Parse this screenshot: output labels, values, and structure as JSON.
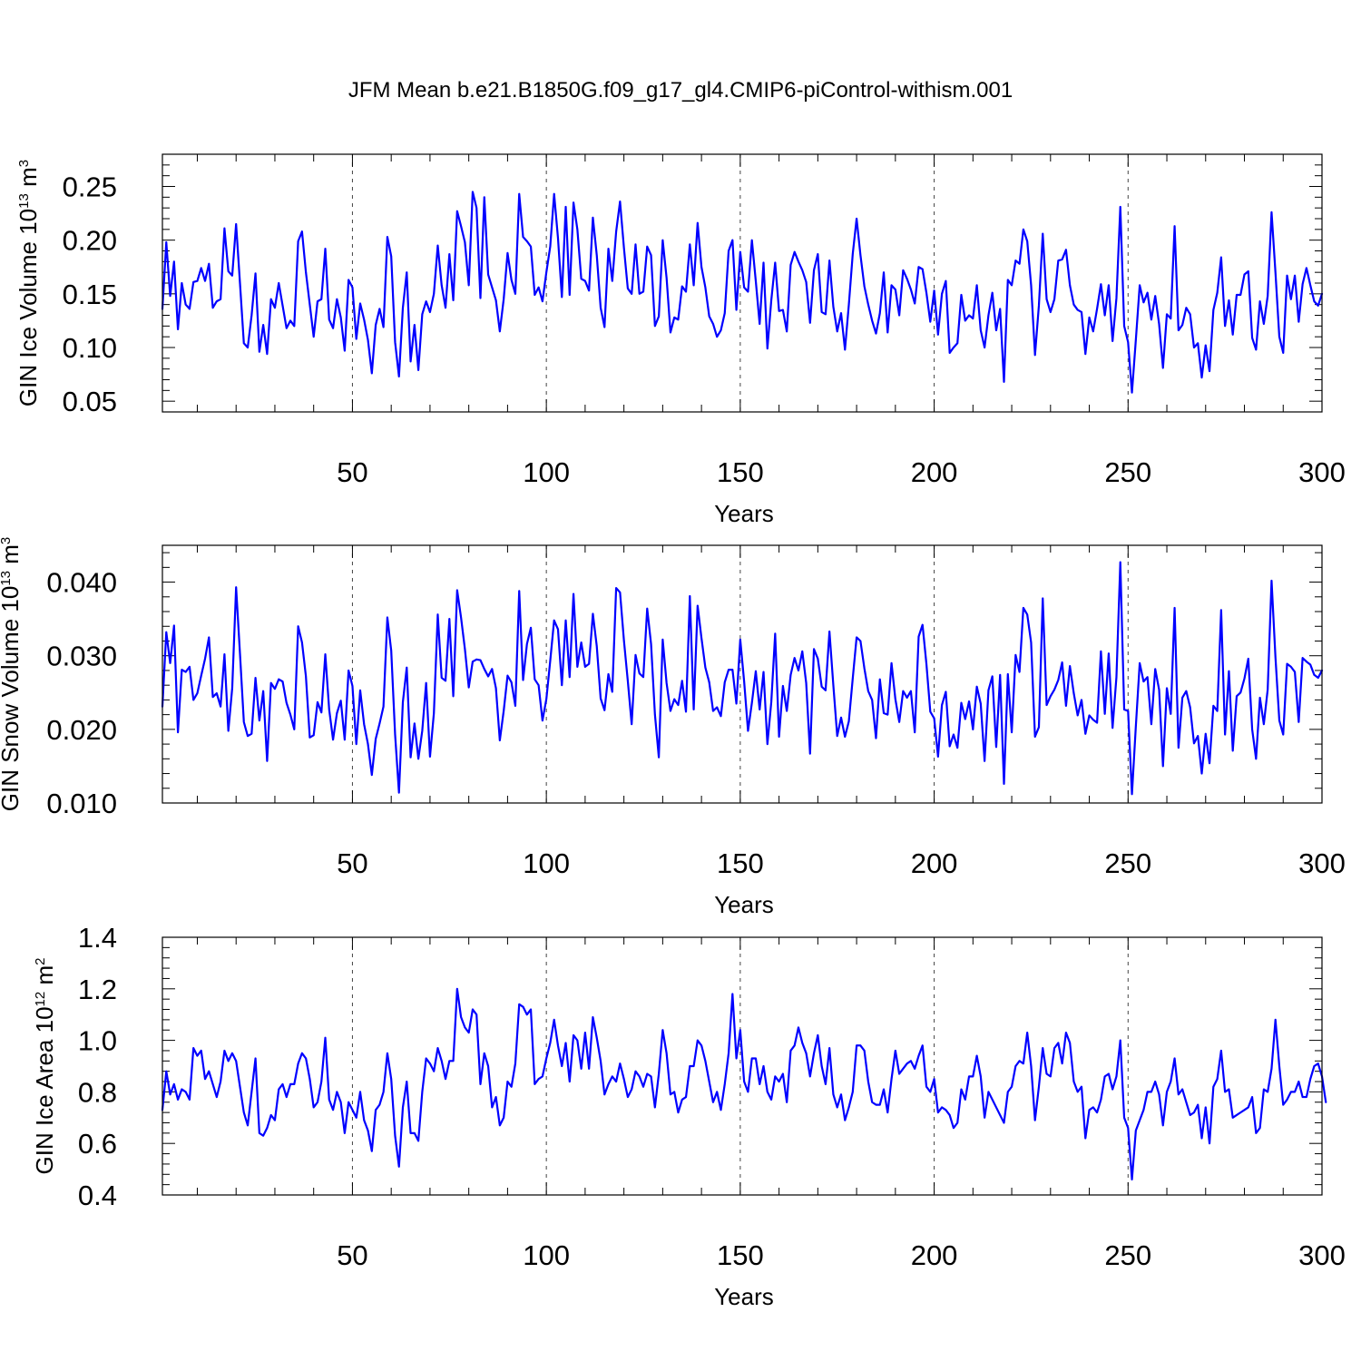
{
  "figure": {
    "title": "JFM Mean b.e21.B1850G.f09_g17_gl4.CMIP6-piControl-withism.001",
    "line_color": "#0000ff",
    "guide_color": "#444444"
  },
  "chart_data": [
    {
      "type": "line",
      "xlabel": "Years",
      "ylabel_main": "GIN Ice Volume 10",
      "ylabel_exp": "13",
      "ylabel_unit": " m",
      "ylabel_unit_exp": "3",
      "xlim": [
        1,
        300
      ],
      "ylim": [
        0.04,
        0.28
      ],
      "yticks": [
        0.05,
        0.1,
        0.15,
        0.2,
        0.25
      ],
      "ytick_labels": [
        "0.05",
        "0.10",
        "0.15",
        "0.20",
        "0.25"
      ],
      "xticks": [
        50,
        100,
        150,
        200,
        250,
        300
      ],
      "xtick_labels": [
        "50",
        "100",
        "150",
        "200",
        "250",
        "300"
      ],
      "guides_x": [
        50,
        100,
        150,
        200,
        250
      ],
      "grid": false,
      "x_start": 1,
      "x_step": 1,
      "values": [
        0.136,
        0.198,
        0.148,
        0.18,
        0.117,
        0.16,
        0.14,
        0.136,
        0.161,
        0.162,
        0.174,
        0.162,
        0.178,
        0.137,
        0.143,
        0.145,
        0.211,
        0.171,
        0.167,
        0.215,
        0.16,
        0.104,
        0.1,
        0.13,
        0.169,
        0.096,
        0.121,
        0.094,
        0.145,
        0.137,
        0.16,
        0.139,
        0.118,
        0.125,
        0.12,
        0.199,
        0.208,
        0.17,
        0.14,
        0.11,
        0.143,
        0.145,
        0.192,
        0.126,
        0.118,
        0.145,
        0.128,
        0.097,
        0.163,
        0.156,
        0.108,
        0.141,
        0.126,
        0.107,
        0.076,
        0.121,
        0.136,
        0.119,
        0.203,
        0.185,
        0.105,
        0.073,
        0.137,
        0.17,
        0.087,
        0.121,
        0.079,
        0.131,
        0.143,
        0.133,
        0.15,
        0.195,
        0.158,
        0.137,
        0.187,
        0.144,
        0.227,
        0.213,
        0.198,
        0.158,
        0.245,
        0.23,
        0.146,
        0.24,
        0.168,
        0.156,
        0.144,
        0.115,
        0.145,
        0.188,
        0.163,
        0.15,
        0.243,
        0.203,
        0.199,
        0.194,
        0.149,
        0.156,
        0.143,
        0.17,
        0.194,
        0.243,
        0.202,
        0.147,
        0.231,
        0.149,
        0.235,
        0.21,
        0.164,
        0.162,
        0.153,
        0.221,
        0.186,
        0.137,
        0.119,
        0.192,
        0.162,
        0.208,
        0.236,
        0.193,
        0.155,
        0.15,
        0.196,
        0.15,
        0.152,
        0.194,
        0.186,
        0.12,
        0.129,
        0.2,
        0.165,
        0.114,
        0.128,
        0.126,
        0.157,
        0.152,
        0.196,
        0.158,
        0.216,
        0.175,
        0.156,
        0.129,
        0.122,
        0.11,
        0.116,
        0.132,
        0.19,
        0.2,
        0.135,
        0.189,
        0.156,
        0.152,
        0.2,
        0.162,
        0.122,
        0.179,
        0.099,
        0.144,
        0.179,
        0.134,
        0.135,
        0.115,
        0.177,
        0.189,
        0.18,
        0.172,
        0.161,
        0.123,
        0.172,
        0.187,
        0.133,
        0.131,
        0.181,
        0.138,
        0.115,
        0.132,
        0.098,
        0.14,
        0.187,
        0.22,
        0.186,
        0.157,
        0.14,
        0.125,
        0.113,
        0.132,
        0.17,
        0.114,
        0.158,
        0.154,
        0.13,
        0.172,
        0.164,
        0.154,
        0.141,
        0.175,
        0.173,
        0.151,
        0.124,
        0.153,
        0.112,
        0.15,
        0.162,
        0.095,
        0.1,
        0.104,
        0.149,
        0.125,
        0.13,
        0.127,
        0.158,
        0.116,
        0.1,
        0.13,
        0.151,
        0.116,
        0.136,
        0.068,
        0.163,
        0.158,
        0.181,
        0.178,
        0.21,
        0.199,
        0.158,
        0.093,
        0.139,
        0.206,
        0.145,
        0.133,
        0.145,
        0.181,
        0.182,
        0.191,
        0.158,
        0.14,
        0.135,
        0.133,
        0.094,
        0.128,
        0.115,
        0.136,
        0.159,
        0.13,
        0.158,
        0.106,
        0.146,
        0.231,
        0.12,
        0.105,
        0.058,
        0.107,
        0.158,
        0.142,
        0.151,
        0.126,
        0.148,
        0.122,
        0.081,
        0.131,
        0.127,
        0.213,
        0.116,
        0.121,
        0.137,
        0.131,
        0.1,
        0.104,
        0.072,
        0.102,
        0.078,
        0.135,
        0.151,
        0.184,
        0.12,
        0.144,
        0.112,
        0.149,
        0.149,
        0.168,
        0.171,
        0.109,
        0.098,
        0.143,
        0.122,
        0.148,
        0.226,
        0.17,
        0.11,
        0.095,
        0.167,
        0.145,
        0.167,
        0.124,
        0.159,
        0.174,
        0.158,
        0.143,
        0.139,
        0.15
      ]
    },
    {
      "type": "line",
      "xlabel": "Years",
      "ylabel_main": "GIN Snow Volume 10",
      "ylabel_exp": "13",
      "ylabel_unit": " m",
      "ylabel_unit_exp": "3",
      "xlim": [
        1,
        300
      ],
      "ylim": [
        0.01,
        0.045
      ],
      "yticks": [
        0.01,
        0.02,
        0.03,
        0.04
      ],
      "ytick_labels": [
        "0.010",
        "0.020",
        "0.030",
        "0.040"
      ],
      "xticks": [
        50,
        100,
        150,
        200,
        250,
        300
      ],
      "xtick_labels": [
        "50",
        "100",
        "150",
        "200",
        "250",
        "300"
      ],
      "guides_x": [
        50,
        100,
        150,
        200,
        250
      ],
      "grid": false,
      "x_start": 1,
      "x_step": 1,
      "values": [
        0.0231,
        0.0332,
        0.029,
        0.0341,
        0.0196,
        0.0281,
        0.0278,
        0.0285,
        0.024,
        0.0249,
        0.0273,
        0.0296,
        0.0325,
        0.0244,
        0.0249,
        0.0231,
        0.0302,
        0.0198,
        0.0256,
        0.0393,
        0.0303,
        0.021,
        0.0191,
        0.0194,
        0.027,
        0.0212,
        0.0252,
        0.0157,
        0.0263,
        0.0255,
        0.0268,
        0.0265,
        0.0236,
        0.022,
        0.02,
        0.034,
        0.0318,
        0.0272,
        0.0189,
        0.0192,
        0.0237,
        0.0223,
        0.0302,
        0.0227,
        0.0186,
        0.0222,
        0.0239,
        0.0186,
        0.028,
        0.0259,
        0.018,
        0.0253,
        0.0207,
        0.018,
        0.0138,
        0.0187,
        0.0208,
        0.0231,
        0.0352,
        0.0307,
        0.0193,
        0.0114,
        0.0237,
        0.0284,
        0.0162,
        0.0208,
        0.016,
        0.0198,
        0.0263,
        0.0163,
        0.0222,
        0.0356,
        0.027,
        0.0266,
        0.035,
        0.0245,
        0.0389,
        0.0352,
        0.0309,
        0.0257,
        0.0292,
        0.0295,
        0.0294,
        0.0282,
        0.0272,
        0.0282,
        0.0256,
        0.0185,
        0.0225,
        0.0273,
        0.0264,
        0.0232,
        0.0388,
        0.0267,
        0.0316,
        0.0338,
        0.0268,
        0.026,
        0.0212,
        0.0241,
        0.0293,
        0.0348,
        0.0336,
        0.026,
        0.0348,
        0.0271,
        0.0384,
        0.0285,
        0.0318,
        0.0285,
        0.0289,
        0.0357,
        0.0313,
        0.0242,
        0.0226,
        0.0275,
        0.0251,
        0.0392,
        0.0386,
        0.0321,
        0.0266,
        0.0207,
        0.0301,
        0.0276,
        0.0271,
        0.0364,
        0.0316,
        0.022,
        0.0162,
        0.0322,
        0.0263,
        0.0225,
        0.0241,
        0.0233,
        0.0266,
        0.0224,
        0.0381,
        0.0227,
        0.0368,
        0.0324,
        0.0284,
        0.0264,
        0.0225,
        0.023,
        0.0218,
        0.0264,
        0.0281,
        0.0281,
        0.0235,
        0.0322,
        0.0265,
        0.0198,
        0.0236,
        0.0279,
        0.0227,
        0.0278,
        0.018,
        0.0237,
        0.033,
        0.019,
        0.0259,
        0.0225,
        0.0274,
        0.0297,
        0.028,
        0.0306,
        0.0263,
        0.0167,
        0.0309,
        0.0296,
        0.0258,
        0.0253,
        0.0333,
        0.026,
        0.0191,
        0.0216,
        0.019,
        0.0211,
        0.0269,
        0.0325,
        0.032,
        0.0283,
        0.0252,
        0.024,
        0.0188,
        0.0268,
        0.0222,
        0.022,
        0.029,
        0.0241,
        0.021,
        0.0252,
        0.0243,
        0.0252,
        0.0196,
        0.0326,
        0.0342,
        0.0289,
        0.0224,
        0.0215,
        0.0163,
        0.0233,
        0.0251,
        0.0177,
        0.0193,
        0.0175,
        0.0236,
        0.0214,
        0.0238,
        0.02,
        0.0258,
        0.0235,
        0.0157,
        0.0253,
        0.0272,
        0.0176,
        0.0274,
        0.0126,
        0.0275,
        0.0196,
        0.0301,
        0.0278,
        0.0365,
        0.0356,
        0.0318,
        0.019,
        0.0203,
        0.0378,
        0.0233,
        0.0245,
        0.0254,
        0.0267,
        0.0291,
        0.0232,
        0.0286,
        0.0249,
        0.0219,
        0.024,
        0.0194,
        0.0219,
        0.0213,
        0.0209,
        0.0306,
        0.0221,
        0.0303,
        0.0202,
        0.0271,
        0.0427,
        0.0227,
        0.0225,
        0.0112,
        0.0204,
        0.029,
        0.0265,
        0.0271,
        0.0207,
        0.0282,
        0.0254,
        0.015,
        0.0256,
        0.0221,
        0.0365,
        0.0175,
        0.0243,
        0.0252,
        0.023,
        0.0181,
        0.0191,
        0.014,
        0.0194,
        0.0154,
        0.0232,
        0.0225,
        0.0362,
        0.0193,
        0.0279,
        0.0171,
        0.0245,
        0.025,
        0.0269,
        0.0296,
        0.02,
        0.016,
        0.0243,
        0.0207,
        0.0254,
        0.0402,
        0.0298,
        0.0212,
        0.0193,
        0.0289,
        0.0285,
        0.0278,
        0.021,
        0.0297,
        0.0292,
        0.0288,
        0.0274,
        0.027,
        0.028
      ]
    },
    {
      "type": "line",
      "xlabel": "Years",
      "ylabel_main": "GIN Ice Area 10",
      "ylabel_exp": "12",
      "ylabel_unit": " m",
      "ylabel_unit_exp": "2",
      "xlim": [
        1,
        300
      ],
      "ylim": [
        0.4,
        1.4
      ],
      "yticks": [
        0.4,
        0.6,
        0.8,
        1.0,
        1.2,
        1.4
      ],
      "ytick_labels": [
        "0.4",
        "0.6",
        "0.8",
        "1.0",
        "1.2",
        "1.4"
      ],
      "xticks": [
        50,
        100,
        150,
        200,
        250,
        300
      ],
      "xtick_labels": [
        "50",
        "100",
        "150",
        "200",
        "250",
        "300"
      ],
      "guides_x": [
        50,
        100,
        150,
        200,
        250
      ],
      "grid": false,
      "x_start": 1,
      "x_step": 1,
      "values": [
        0.73,
        0.88,
        0.79,
        0.83,
        0.77,
        0.81,
        0.8,
        0.77,
        0.97,
        0.94,
        0.96,
        0.85,
        0.88,
        0.83,
        0.78,
        0.84,
        0.96,
        0.92,
        0.95,
        0.92,
        0.82,
        0.72,
        0.67,
        0.8,
        0.93,
        0.64,
        0.63,
        0.66,
        0.71,
        0.69,
        0.81,
        0.83,
        0.78,
        0.83,
        0.83,
        0.91,
        0.95,
        0.93,
        0.85,
        0.74,
        0.76,
        0.84,
        1.01,
        0.77,
        0.73,
        0.8,
        0.76,
        0.64,
        0.76,
        0.73,
        0.7,
        0.8,
        0.69,
        0.65,
        0.57,
        0.73,
        0.75,
        0.8,
        0.95,
        0.85,
        0.63,
        0.51,
        0.74,
        0.84,
        0.64,
        0.64,
        0.61,
        0.8,
        0.93,
        0.91,
        0.88,
        0.97,
        0.92,
        0.85,
        0.92,
        0.92,
        1.2,
        1.09,
        1.05,
        1.03,
        1.12,
        1.1,
        0.83,
        0.95,
        0.9,
        0.74,
        0.78,
        0.67,
        0.7,
        0.84,
        0.82,
        0.91,
        1.14,
        1.13,
        1.1,
        1.12,
        0.83,
        0.85,
        0.86,
        0.93,
        0.99,
        1.08,
        0.98,
        0.9,
        0.99,
        0.84,
        1.02,
        1.0,
        0.89,
        1.03,
        0.89,
        1.09,
        1.01,
        0.92,
        0.79,
        0.83,
        0.86,
        0.84,
        0.91,
        0.85,
        0.78,
        0.81,
        0.88,
        0.86,
        0.82,
        0.87,
        0.86,
        0.74,
        0.87,
        1.04,
        0.95,
        0.79,
        0.8,
        0.72,
        0.77,
        0.78,
        0.9,
        0.9,
        1.0,
        0.98,
        0.92,
        0.84,
        0.76,
        0.8,
        0.73,
        0.83,
        0.95,
        1.18,
        0.93,
        1.04,
        0.84,
        0.8,
        0.93,
        0.93,
        0.83,
        0.9,
        0.8,
        0.77,
        0.86,
        0.84,
        0.87,
        0.76,
        0.96,
        0.98,
        1.05,
        0.99,
        0.95,
        0.86,
        0.95,
        1.02,
        0.9,
        0.83,
        0.97,
        0.79,
        0.74,
        0.79,
        0.69,
        0.74,
        0.8,
        0.98,
        0.98,
        0.96,
        0.84,
        0.76,
        0.75,
        0.75,
        0.81,
        0.72,
        0.85,
        0.96,
        0.87,
        0.89,
        0.91,
        0.92,
        0.89,
        0.94,
        0.98,
        0.82,
        0.8,
        0.85,
        0.72,
        0.74,
        0.73,
        0.71,
        0.66,
        0.68,
        0.81,
        0.77,
        0.86,
        0.86,
        0.94,
        0.86,
        0.7,
        0.8,
        0.77,
        0.74,
        0.71,
        0.68,
        0.8,
        0.82,
        0.9,
        0.92,
        0.91,
        1.03,
        0.9,
        0.69,
        0.82,
        0.97,
        0.87,
        0.86,
        0.97,
        0.99,
        0.91,
        1.03,
        0.99,
        0.84,
        0.8,
        0.82,
        0.62,
        0.73,
        0.74,
        0.72,
        0.77,
        0.86,
        0.87,
        0.81,
        0.86,
        1.0,
        0.7,
        0.66,
        0.46,
        0.65,
        0.69,
        0.73,
        0.8,
        0.8,
        0.84,
        0.79,
        0.67,
        0.8,
        0.84,
        0.93,
        0.79,
        0.81,
        0.76,
        0.71,
        0.72,
        0.75,
        0.62,
        0.74,
        0.6,
        0.82,
        0.85,
        0.96,
        0.8,
        0.81,
        0.7,
        0.71,
        0.72,
        0.73,
        0.74,
        0.78,
        0.64,
        0.66,
        0.81,
        0.8,
        0.89,
        1.08,
        0.9,
        0.75,
        0.77,
        0.8,
        0.8,
        0.84,
        0.78,
        0.78,
        0.85,
        0.9,
        0.91,
        0.86,
        0.76
      ]
    }
  ]
}
